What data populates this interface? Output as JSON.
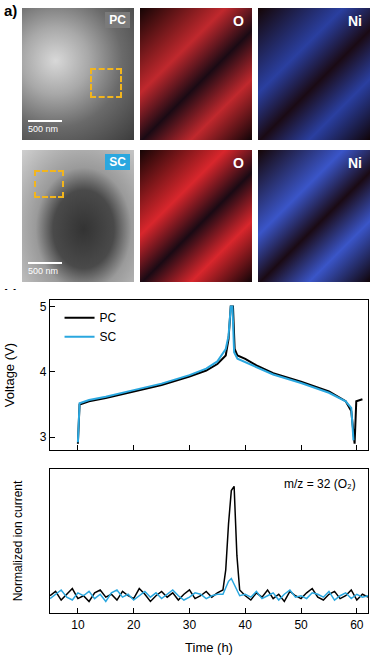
{
  "image_panel": {
    "label": "a)",
    "rows": [
      {
        "tag": "PC",
        "tag_color": "#7a7a7a",
        "scale_bar": "500 nm",
        "maps": [
          {
            "label": "O",
            "color": "#c0282d"
          },
          {
            "label": "Ni",
            "color": "#2a3fa0"
          }
        ]
      },
      {
        "tag": "SC",
        "tag_color": "#2aa7df",
        "scale_bar": "500 nm",
        "maps": [
          {
            "label": "O",
            "color": "#d8262c"
          },
          {
            "label": "Ni",
            "color": "#3a55c8"
          }
        ]
      }
    ]
  },
  "panel_label": "b)",
  "chart_data": [
    {
      "type": "line",
      "y_label": "Voltage (V)",
      "xlim": [
        5,
        62
      ],
      "xticks": [
        10,
        20,
        30,
        40,
        50,
        60
      ],
      "ylim": [
        2.8,
        5.1
      ],
      "yticks": [
        3,
        4,
        5
      ],
      "tick_labels": "y",
      "legend": "top left",
      "series": [
        {
          "name": "PC",
          "color": "#000000",
          "x": [
            10,
            10.3,
            12,
            15,
            20,
            25,
            30,
            33,
            35,
            36.5,
            37,
            37.4,
            37.8,
            38.1,
            38.6,
            40,
            42,
            45,
            50,
            55,
            58,
            59,
            59.6,
            59.9,
            61
          ],
          "values": [
            2.9,
            3.5,
            3.55,
            3.6,
            3.7,
            3.8,
            3.93,
            4.02,
            4.12,
            4.25,
            4.5,
            5.0,
            5.0,
            4.35,
            4.25,
            4.2,
            4.1,
            3.98,
            3.85,
            3.7,
            3.55,
            3.4,
            2.9,
            3.55,
            3.58
          ]
        },
        {
          "name": "SC",
          "color": "#2aa7df",
          "x": [
            10,
            10.3,
            12,
            15,
            20,
            25,
            30,
            33,
            35,
            36.5,
            37,
            37.4,
            37.7,
            38,
            38.6,
            40,
            42,
            45,
            50,
            55,
            58,
            59,
            59.4
          ],
          "values": [
            2.92,
            3.52,
            3.57,
            3.62,
            3.72,
            3.82,
            3.95,
            4.05,
            4.16,
            4.35,
            4.55,
            5.0,
            5.0,
            4.3,
            4.2,
            4.15,
            4.07,
            3.96,
            3.83,
            3.68,
            3.55,
            3.45,
            2.95
          ]
        }
      ]
    },
    {
      "type": "line",
      "y_label": "Normalized ion current",
      "x_label": "Time (h)",
      "annotation": "m/z = 32 (O₂)",
      "xlim": [
        5,
        62
      ],
      "xticks": [
        10,
        20,
        30,
        40,
        50,
        60
      ],
      "ylim": [
        0,
        1
      ],
      "yticks": [],
      "tick_labels": "x",
      "x": [
        5,
        6,
        7,
        8,
        9,
        10,
        11,
        12,
        13,
        14,
        15,
        16,
        17,
        18,
        19,
        20,
        21,
        22,
        23,
        24,
        25,
        26,
        27,
        28,
        29,
        30,
        31,
        32,
        33,
        34,
        35,
        36,
        36.5,
        37,
        37.5,
        38,
        38.5,
        39,
        40,
        41,
        42,
        43,
        44,
        45,
        46,
        47,
        48,
        49,
        50,
        51,
        52,
        53,
        54,
        55,
        56,
        57,
        58,
        59,
        60,
        61,
        62
      ],
      "series": [
        {
          "name": "PC",
          "color": "#000000",
          "values": [
            0.12,
            0.15,
            0.09,
            0.13,
            0.17,
            0.1,
            0.12,
            0.08,
            0.14,
            0.16,
            0.11,
            0.13,
            0.09,
            0.15,
            0.12,
            0.1,
            0.17,
            0.13,
            0.08,
            0.12,
            0.15,
            0.11,
            0.14,
            0.09,
            0.13,
            0.16,
            0.1,
            0.12,
            0.15,
            0.11,
            0.14,
            0.16,
            0.3,
            0.62,
            0.85,
            0.88,
            0.4,
            0.16,
            0.12,
            0.09,
            0.14,
            0.11,
            0.16,
            0.1,
            0.13,
            0.08,
            0.15,
            0.12,
            0.1,
            0.14,
            0.17,
            0.11,
            0.09,
            0.13,
            0.15,
            0.1,
            0.12,
            0.16,
            0.09,
            0.13,
            0.11
          ]
        },
        {
          "name": "SC",
          "color": "#2aa7df",
          "values": [
            0.1,
            0.13,
            0.16,
            0.11,
            0.09,
            0.14,
            0.12,
            0.15,
            0.1,
            0.13,
            0.08,
            0.14,
            0.16,
            0.11,
            0.13,
            0.09,
            0.12,
            0.15,
            0.11,
            0.14,
            0.1,
            0.13,
            0.16,
            0.12,
            0.09,
            0.11,
            0.14,
            0.13,
            0.1,
            0.12,
            0.13,
            0.13,
            0.17,
            0.22,
            0.24,
            0.2,
            0.15,
            0.12,
            0.13,
            0.11,
            0.15,
            0.1,
            0.12,
            0.14,
            0.09,
            0.13,
            0.16,
            0.11,
            0.12,
            0.1,
            0.14,
            0.13,
            0.11,
            0.15,
            0.09,
            0.12,
            0.14,
            0.1,
            0.13,
            0.11,
            0.12
          ]
        }
      ]
    }
  ]
}
